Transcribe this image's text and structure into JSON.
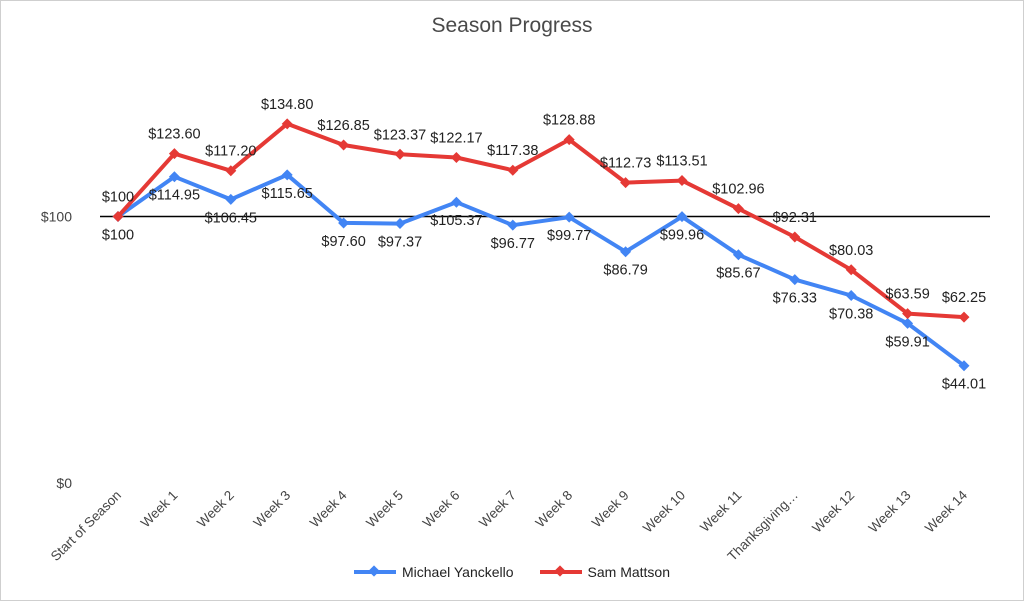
{
  "colors": {
    "michael": "#4285f4",
    "sam": "#e53935",
    "axis_line": "#000000",
    "text": "#222222"
  },
  "chart_data": {
    "type": "line",
    "title": "Season Progress",
    "xlabel": "",
    "ylabel": "",
    "ylim": [
      0,
      155
    ],
    "y_ticks": [
      {
        "value": 0,
        "label": "$0"
      },
      {
        "value": 100,
        "label": "$100"
      }
    ],
    "reference_line": 100,
    "grid": false,
    "legend": "bottom",
    "categories": [
      "Start of Season",
      "Week 1",
      "Week 2",
      "Week 3",
      "Week 4",
      "Week 5",
      "Week 6",
      "Week 7",
      "Week 8",
      "Week 9",
      "Week 10",
      "Week 11",
      "Thanksgiving…",
      "Week 12",
      "Week 13",
      "Week 14"
    ],
    "series": [
      {
        "name": "Michael Yanckello",
        "values": [
          100,
          114.95,
          106.45,
          115.65,
          97.6,
          97.37,
          105.37,
          96.77,
          99.77,
          86.79,
          99.96,
          85.67,
          76.33,
          70.38,
          59.91,
          44.01
        ],
        "labels": [
          "$100",
          "$114.95",
          "$106.45",
          "$115.65",
          "$97.60",
          "$97.37",
          "$105.37",
          "$96.77",
          "$99.77",
          "$86.79",
          "$99.96",
          "$85.67",
          "$76.33",
          "$70.38",
          "$59.91",
          "$44.01"
        ]
      },
      {
        "name": "Sam Mattson",
        "values": [
          100,
          123.6,
          117.2,
          134.8,
          126.85,
          123.37,
          122.17,
          117.38,
          128.88,
          112.73,
          113.51,
          102.96,
          92.31,
          80.03,
          63.59,
          62.25
        ],
        "labels": [
          "$100",
          "$123.60",
          "$117.20",
          "$134.80",
          "$126.85",
          "$123.37",
          "$122.17",
          "$117.38",
          "$128.88",
          "$112.73",
          "$113.51",
          "$102.96",
          "$92.31",
          "$80.03",
          "$63.59",
          "$62.25"
        ]
      }
    ]
  }
}
